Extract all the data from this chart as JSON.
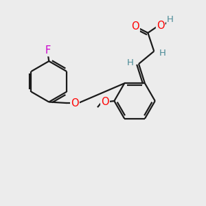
{
  "background_color": "#ececec",
  "bond_color": "#1a1a1a",
  "atom_colors": {
    "O": "#ff0000",
    "F": "#cc00cc",
    "H": "#4a8a96",
    "C": "#1a1a1a"
  },
  "lw": 1.6,
  "font_size_atoms": 10.5,
  "font_size_h": 9.5
}
